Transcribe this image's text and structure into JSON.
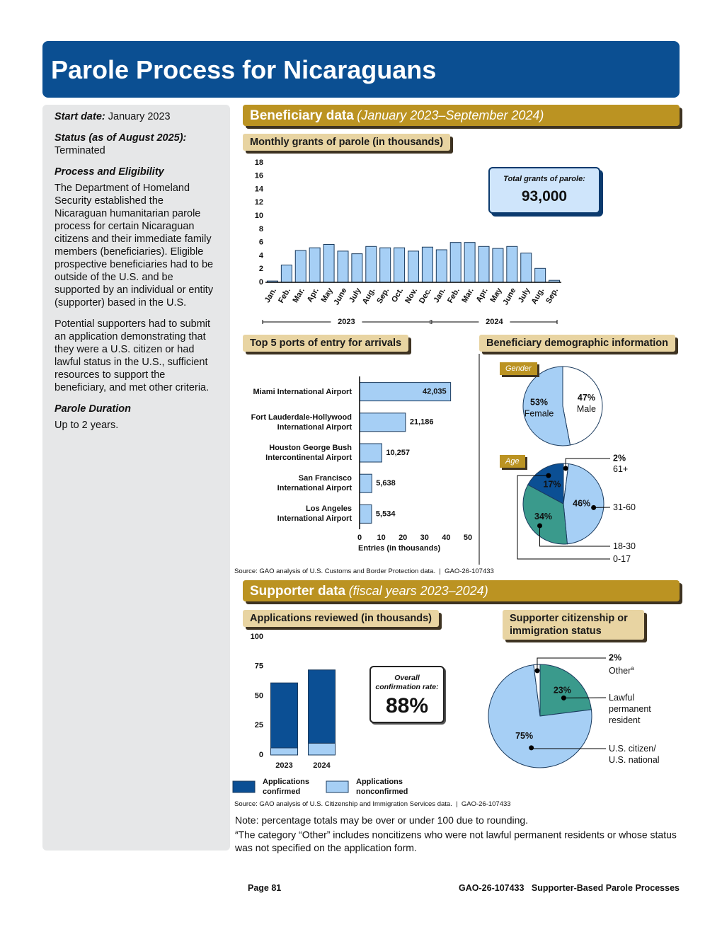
{
  "header": {
    "title": "Parole Process for Nicaraguans"
  },
  "sidebar": {
    "start_label": "Start date:",
    "start_value": "January 2023",
    "status_label": "Status (as of August 2025):",
    "status_value": "Terminated",
    "process_heading": "Process and Eligibility",
    "process_paragraphs": [
      "The Department of Homeland Security established the Nicaraguan humanitarian parole process for certain Nicaraguan citizens and their immediate family members (beneficiaries). Eligible prospective beneficiaries had to be outside of the U.S. and be supported by an individual or entity (supporter) based in the U.S.",
      "Potential supporters had to submit an application demonstrating that they were a U.S. citizen or had lawful status in the U.S., sufficient resources to support the beneficiary, and met other criteria."
    ],
    "duration_heading": "Parole Duration",
    "duration_value": "Up to 2 years."
  },
  "sections": [
    {
      "title": "Beneficiary data",
      "subtitle": "(January 2023–September 2024)"
    },
    {
      "title": "Supporter data",
      "subtitle": "(fiscal years 2023–2024)"
    }
  ],
  "demographics_title": "Beneficiary demographic information",
  "sources": [
    "Source: GAO analysis of U.S. Customs and Border Protection data.  |  GAO-26-107433",
    "Source: GAO analysis of U.S. Citizenship and Immigration Services data.  |  GAO-26-107433"
  ],
  "notes": {
    "note": "Note: percentage totals may be over or under 100 due to rounding.",
    "footnote_mark": "a",
    "footnote": "The category “Other” includes noncitizens who were not lawful permanent residents or whose status was not specified on the application form."
  },
  "footer": {
    "page": "Page 81",
    "report": "GAO-26-107433   Supporter-Based Parole Processes"
  },
  "chart_data": [
    {
      "type": "bar",
      "title": "Monthly grants of parole (in thousands)",
      "categories": [
        "Jan.",
        "Feb.",
        "Mar.",
        "Apr.",
        "May",
        "June",
        "July",
        "Aug.",
        "Sep.",
        "Oct.",
        "Nov.",
        "Dec.",
        "Jan.",
        "Feb.",
        "Mar.",
        "Apr.",
        "May",
        "June",
        "July",
        "Aug.",
        "Sep."
      ],
      "x_groups": [
        "2023",
        "2024"
      ],
      "values": [
        0.2,
        2.6,
        4.8,
        5.2,
        5.7,
        4.7,
        4.3,
        5.4,
        5.2,
        5.2,
        4.7,
        5.3,
        4.9,
        6.0,
        6.0,
        5.4,
        5.1,
        5.4,
        4.4,
        2.1,
        0.3
      ],
      "color": "#a6cff5",
      "ylim": [
        0,
        18
      ],
      "yticks": [
        0,
        2,
        4,
        6,
        8,
        10,
        12,
        14,
        16,
        18
      ],
      "callout": {
        "label": "Total grants of parole:",
        "value": "93,000"
      }
    },
    {
      "type": "hbar",
      "title": "Top 5 ports of entry for arrivals",
      "categories": [
        "Miami International Airport",
        "Fort Lauderdale-Hollywood\nInternational Airport",
        "Houston George Bush\nIntercontinental Airport",
        "San Francisco\nInternational Airport",
        "Los Angeles\nInternational Airport"
      ],
      "values": [
        42.035,
        21.186,
        10.257,
        5.638,
        5.534
      ],
      "value_labels": [
        "42,035",
        "21,186",
        "10,257",
        "5,638",
        "5,534"
      ],
      "color": "#a6cff5",
      "xlim": [
        0,
        50
      ],
      "xticks": [
        0,
        10,
        20,
        30,
        40,
        50
      ],
      "x_label": "Entries (in thousands)"
    },
    {
      "type": "pie",
      "title": "Gender",
      "categories": [
        "Male",
        "Female"
      ],
      "values": [
        47,
        53
      ],
      "value_labels": [
        "47%",
        "53%"
      ],
      "colors": [
        "#ffffff",
        "#a6cff5"
      ]
    },
    {
      "type": "pie",
      "title": "Age",
      "categories": [
        "61+",
        "31-60",
        "18-30",
        "0-17"
      ],
      "values": [
        2,
        46,
        34,
        17
      ],
      "value_labels": [
        "2%",
        "46%",
        "34%",
        "17%"
      ],
      "colors": [
        "#ffffff",
        "#a6cff5",
        "#3a9a8c",
        "#0b4f94"
      ]
    },
    {
      "type": "stacked_bar",
      "title": "Applications reviewed (in thousands)",
      "categories": [
        "2023",
        "2024"
      ],
      "series": [
        {
          "name": "Applications confirmed",
          "color": "#0b4f94",
          "values": [
            55,
            62
          ]
        },
        {
          "name": "Applications nonconfirmed",
          "color": "#a6cff5",
          "values": [
            6,
            10
          ]
        }
      ],
      "ylim": [
        0,
        100
      ],
      "yticks": [
        0,
        25,
        50,
        75,
        100
      ],
      "callout": {
        "label": "Overall confirmation rate:",
        "value": "88%"
      }
    },
    {
      "type": "pie",
      "title": "Supporter citizenship or immigration status",
      "categories": [
        "Lawful permanent resident",
        "U.S. citizen/\nU.S. national",
        "Other"
      ],
      "values": [
        23,
        75,
        2
      ],
      "value_labels": [
        "23%",
        "75%",
        "2%"
      ],
      "colors": [
        "#3a9a8c",
        "#a6cff5",
        "#ffffff"
      ]
    }
  ]
}
